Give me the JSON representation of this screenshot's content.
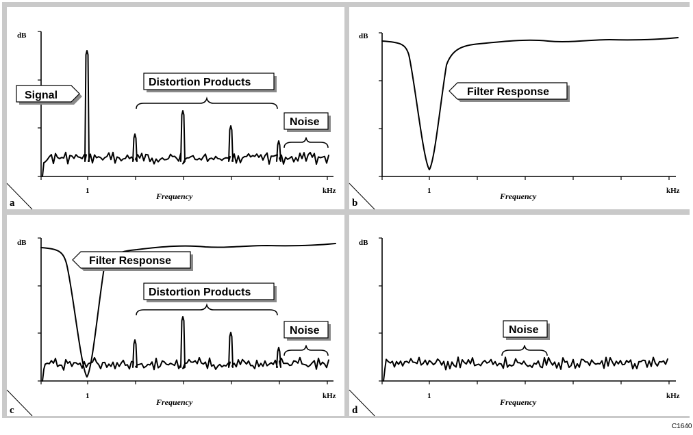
{
  "figure_id": "C1640",
  "panels": [
    {
      "letter": "a",
      "y_unit": "dB",
      "x_tick_label": "1",
      "x_unit": "kHz",
      "x_label": "Frequency",
      "callouts": {
        "signal": "Signal",
        "distortion": "Distortion Products",
        "noise": "Noise"
      }
    },
    {
      "letter": "b",
      "y_unit": "dB",
      "x_tick_label": "1",
      "x_unit": "kHz",
      "x_label": "Frequency",
      "callouts": {
        "filter": "Filter Response"
      }
    },
    {
      "letter": "c",
      "y_unit": "dB",
      "x_tick_label": "1",
      "x_unit": "kHz",
      "x_label": "Frequency",
      "callouts": {
        "filter": "Filter Response",
        "distortion": "Distortion Products",
        "noise": "Noise"
      }
    },
    {
      "letter": "d",
      "y_unit": "dB",
      "x_tick_label": "1",
      "x_unit": "kHz",
      "x_label": "Frequency",
      "callouts": {
        "noise": "Noise"
      }
    }
  ]
}
